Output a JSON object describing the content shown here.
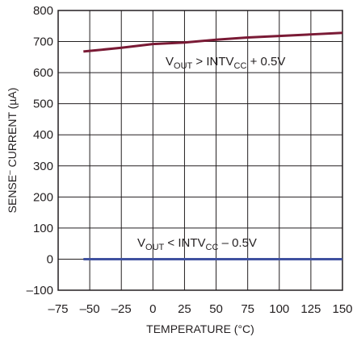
{
  "chart_data": {
    "type": "line",
    "xlabel": "TEMPERATURE (°C)",
    "ylabel": {
      "main": "SENSE",
      "sup": "–",
      "rest": " CURRENT (µA)"
    },
    "xlim": [
      -75,
      150
    ],
    "ylim": [
      -100,
      800
    ],
    "x_ticks": [
      -75,
      -50,
      -25,
      0,
      25,
      50,
      75,
      100,
      125,
      150
    ],
    "y_ticks": [
      -100,
      0,
      100,
      200,
      300,
      400,
      500,
      600,
      700,
      800
    ],
    "grid": true,
    "series": [
      {
        "color": "#7a1a35",
        "x": [
          -55,
          -25,
          0,
          25,
          50,
          75,
          100,
          125,
          150
        ],
        "y": [
          668,
          680,
          692,
          697,
          706,
          713,
          718,
          723,
          728
        ],
        "annotation": {
          "parts": [
            "V",
            "OUT",
            " > INTV",
            "CC",
            " + 0.5V"
          ]
        }
      },
      {
        "color": "#3f51a0",
        "x": [
          -55,
          150
        ],
        "y": [
          0,
          0
        ],
        "annotation": {
          "parts": [
            "V",
            "OUT",
            " < INTV",
            "CC",
            " – 0.5V"
          ]
        }
      }
    ]
  }
}
